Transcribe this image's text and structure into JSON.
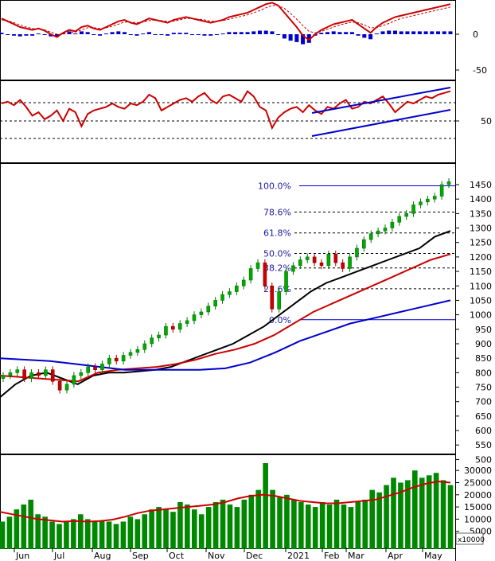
{
  "chart_data": [
    {
      "type": "line",
      "panel": "MACD",
      "y_ticks": [
        0,
        -50
      ],
      "series": [
        {
          "values": [
            22,
            18,
            14,
            10,
            8,
            6,
            8,
            5,
            0,
            -4,
            2,
            6,
            4,
            10,
            12,
            8,
            6,
            10,
            14,
            18,
            20,
            16,
            14,
            18,
            22,
            20,
            18,
            16,
            20,
            22,
            24,
            22,
            20,
            18,
            16,
            18,
            20,
            24,
            26,
            28,
            30,
            34,
            38,
            42,
            44,
            40,
            30,
            20,
            10,
            -2,
            -8,
            0,
            6,
            10,
            14,
            16,
            18,
            20,
            14,
            8,
            2,
            10,
            16,
            20,
            24,
            26,
            28,
            30,
            32,
            34,
            36,
            38,
            40,
            42
          ]
        },
        {
          "values": [
            20,
            19,
            16,
            13,
            10,
            8,
            7,
            6,
            3,
            0,
            0,
            2,
            3,
            6,
            9,
            9,
            8,
            9,
            11,
            14,
            17,
            17,
            16,
            17,
            19,
            20,
            19,
            18,
            18,
            20,
            22,
            22,
            21,
            20,
            18,
            18,
            19,
            21,
            23,
            25,
            27,
            30,
            33,
            37,
            40,
            40,
            36,
            29,
            21,
            12,
            4,
            2,
            4,
            7,
            10,
            13,
            15,
            17,
            16,
            13,
            9,
            9,
            12,
            15,
            19,
            22,
            24,
            26,
            28,
            30,
            32,
            34,
            36,
            38
          ]
        }
      ],
      "histogram": [
        2,
        -1,
        -2,
        -3,
        -2,
        -2,
        1,
        -1,
        -3,
        -4,
        2,
        4,
        1,
        4,
        3,
        -1,
        -2,
        1,
        3,
        4,
        3,
        -1,
        -2,
        1,
        3,
        0,
        -1,
        -2,
        2,
        2,
        2,
        0,
        -1,
        -2,
        -2,
        0,
        1,
        3,
        3,
        3,
        3,
        4,
        5,
        5,
        4,
        0,
        -6,
        -9,
        -11,
        -14,
        -12,
        -2,
        2,
        3,
        4,
        3,
        3,
        3,
        -2,
        -5,
        -7,
        1,
        4,
        5,
        5,
        4,
        4,
        4,
        4,
        4,
        4,
        4,
        4,
        4
      ]
    },
    {
      "type": "line",
      "panel": "RSI",
      "y_ticks": [
        50
      ],
      "series": [
        {
          "values": [
            70,
            72,
            68,
            74,
            66,
            56,
            60,
            52,
            56,
            62,
            50,
            64,
            60,
            44,
            58,
            62,
            64,
            66,
            70,
            66,
            64,
            70,
            68,
            72,
            80,
            76,
            62,
            66,
            70,
            74,
            76,
            72,
            78,
            82,
            74,
            70,
            78,
            80,
            76,
            72,
            84,
            78,
            66,
            62,
            42,
            54,
            60,
            64,
            66,
            60,
            68,
            62,
            58,
            66,
            64,
            70,
            74,
            64,
            66,
            72,
            70,
            74,
            78,
            70,
            60,
            66,
            72,
            70,
            74,
            78,
            76,
            80,
            82,
            84
          ]
        }
      ],
      "channel_lines": 2
    },
    {
      "type": "candlestick",
      "panel": "Price",
      "x_tick_labels": [
        "Jun",
        "Jul",
        "Aug",
        "Sep",
        "Oct",
        "Nov",
        "Dec",
        "2021",
        "Feb",
        "Mar",
        "Apr",
        "May"
      ],
      "y_ticks": [
        1450,
        1400,
        1350,
        1300,
        1250,
        1200,
        1150,
        1100,
        1050,
        1000,
        950,
        900,
        850,
        800,
        750,
        700,
        650,
        600,
        550,
        500
      ],
      "close": [
        790,
        800,
        810,
        780,
        800,
        790,
        810,
        770,
        740,
        760,
        790,
        800,
        820,
        810,
        830,
        850,
        840,
        860,
        870,
        880,
        900,
        920,
        930,
        960,
        950,
        970,
        980,
        1000,
        1010,
        1030,
        1050,
        1070,
        1080,
        1100,
        1120,
        1160,
        1180,
        1100,
        1020,
        1080,
        1150,
        1170,
        1190,
        1200,
        1180,
        1170,
        1210,
        1180,
        1160,
        1200,
        1230,
        1260,
        1280,
        1290,
        1300,
        1320,
        1340,
        1350,
        1380,
        1390,
        1400,
        1410,
        1450,
        1460
      ],
      "moving_averages": [
        {
          "color": "#000000",
          "values": [
            715,
            760,
            790,
            800,
            780,
            760,
            790,
            800,
            800,
            805,
            810,
            820,
            840,
            860,
            880,
            900,
            930,
            960,
            1000,
            1040,
            1080,
            1110,
            1130,
            1150,
            1170,
            1190,
            1210,
            1230,
            1270,
            1290
          ]
        },
        {
          "color": "#cc0000",
          "values": [
            790,
            785,
            780,
            775,
            770,
            800,
            810,
            815,
            820,
            830,
            845,
            865,
            880,
            900,
            930,
            970,
            1010,
            1040,
            1070,
            1100,
            1130,
            1160,
            1190,
            1210
          ]
        },
        {
          "color": "#0000cc",
          "values": [
            850,
            845,
            840,
            830,
            820,
            810,
            810,
            810,
            810,
            815,
            835,
            870,
            910,
            940,
            970,
            990,
            1010,
            1030,
            1050
          ]
        }
      ],
      "fibonacci": [
        {
          "label": "100.0%",
          "value": 1446
        },
        {
          "label": "78.6%",
          "value": 1355
        },
        {
          "label": "61.8%",
          "value": 1283
        },
        {
          "label": "50.0%",
          "value": 1212
        },
        {
          "label": "38.2%",
          "value": 1162
        },
        {
          "label": "23.6%",
          "value": 1090
        },
        {
          "label": "0.0%",
          "value": 983
        }
      ]
    },
    {
      "type": "bar",
      "panel": "Volume",
      "y_ticks": [
        30000,
        25000,
        20000,
        15000,
        10000,
        5000
      ],
      "unit_label": "x10000",
      "values": [
        9000,
        11000,
        14000,
        16000,
        18000,
        12000,
        11000,
        9000,
        8000,
        9000,
        10000,
        12000,
        10000,
        9000,
        9500,
        9000,
        8000,
        9000,
        11000,
        10000,
        12000,
        14000,
        15000,
        14000,
        13000,
        17000,
        16000,
        14000,
        12000,
        15000,
        17000,
        18000,
        16000,
        15000,
        18000,
        20000,
        22000,
        33000,
        22000,
        19000,
        20000,
        18000,
        17000,
        16000,
        15000,
        17000,
        16000,
        18000,
        16000,
        15000,
        17000,
        18000,
        22000,
        21000,
        24000,
        27000,
        25000,
        26000,
        30000,
        27000,
        28000,
        29000,
        26000,
        24000
      ],
      "ma_values": [
        13000,
        12000,
        11000,
        10000,
        9500,
        9000,
        9200,
        9000,
        9200,
        9800,
        11000,
        12500,
        13500,
        14000,
        14500,
        15000,
        15500,
        16000,
        17000,
        18500,
        19500,
        20000,
        19500,
        18500,
        17500,
        17000,
        16500,
        16500,
        17000,
        17500,
        18000,
        19500,
        21000,
        23000,
        24500,
        25500,
        25000
      ]
    }
  ]
}
